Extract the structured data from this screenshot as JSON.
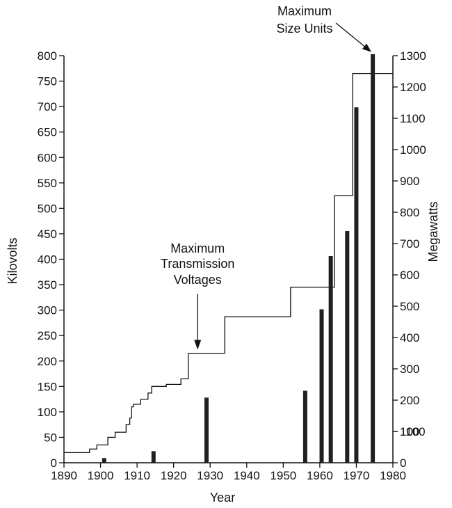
{
  "chart_data": {
    "type": "bar",
    "title": "",
    "xlabel": "Year",
    "ylabel_left": "Kilovolts",
    "ylabel_right": "Megawatts",
    "xlim": [
      1890,
      1980
    ],
    "ylim_left": [
      0,
      800
    ],
    "ylim_right": [
      0,
      1300
    ],
    "x_ticks": [
      "1890",
      "1900",
      "1910",
      "1920",
      "1930",
      "1940",
      "1950",
      "1960",
      "1970",
      "1980"
    ],
    "y_ticks_left": [
      "0",
      "50",
      "100",
      "150",
      "200",
      "250",
      "300",
      "350",
      "400",
      "450",
      "500",
      "550",
      "600",
      "650",
      "700",
      "750",
      "800"
    ],
    "y_ticks_right": [
      "0",
      "100",
      "200",
      "300",
      "400",
      "500",
      "600",
      "700",
      "800",
      "900",
      "1000",
      "1100",
      "1200",
      "1300"
    ],
    "y_ticks_right_extra": "1100",
    "grid": false,
    "series": [
      {
        "name": "Maximum Transmission Voltages",
        "kind": "step",
        "axis": "left",
        "x": [
          1890,
          1896,
          1897,
          1899,
          1902,
          1904,
          1907,
          1908,
          1908.5,
          1909,
          1911,
          1913,
          1914,
          1918,
          1922,
          1923,
          1924,
          1926,
          1934,
          1952,
          1964,
          1969,
          1980
        ],
        "y": [
          20,
          20,
          27,
          35,
          50,
          60,
          75,
          88,
          110,
          115,
          125,
          137,
          150,
          154,
          165,
          165,
          215,
          215,
          287,
          345,
          525,
          765,
          765
        ]
      },
      {
        "name": "Maximum Size Units",
        "kind": "bar",
        "axis": "right",
        "x": [
          1901,
          1914.5,
          1929,
          1956,
          1960.5,
          1963,
          1967.5,
          1970,
          1974.5
        ],
        "y": [
          15,
          37,
          208,
          230,
          490,
          660,
          740,
          1135,
          1305
        ]
      }
    ],
    "annotations": [
      {
        "label_lines": [
          "Maximum",
          "Transmission",
          "Voltages"
        ],
        "points_to": {
          "x": 1926,
          "y": 225,
          "axis": "left"
        }
      },
      {
        "label_lines": [
          "Maximum",
          "Size Units"
        ],
        "points_to": {
          "x": 1974.5,
          "y": 1305,
          "axis": "right"
        }
      }
    ],
    "colors": {
      "line": "#111111",
      "bars": "#231f20"
    }
  }
}
